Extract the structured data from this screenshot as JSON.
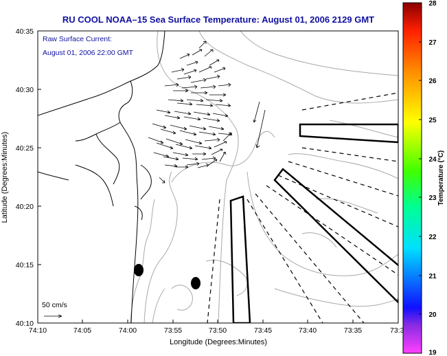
{
  "title": "RU COOL  NOAA–15  Sea Surface Temperature:  August 01, 2006 2129 GMT",
  "current_label_line1": "Raw Surface Current:",
  "current_label_line2": "August 01, 2006 22:00 GMT",
  "scale_label": "50 cm/s",
  "xlabel": "Longitude (Degrees:Minutes)",
  "ylabel": "Latitude (Degrees:Minutes)",
  "colorbar_label": "Temperature (°C)",
  "x_ticks": [
    "74:10",
    "74:05",
    "74:00",
    "73:55",
    "73:50",
    "73:45",
    "73:40",
    "73:35",
    "73:3"
  ],
  "y_ticks": [
    "40:35",
    "40:30",
    "40:25",
    "40:20",
    "40:15",
    "40:10"
  ],
  "colorbar_ticks": [
    "28",
    "27",
    "26",
    "25",
    "24",
    "23",
    "22",
    "21",
    "20",
    "19"
  ],
  "colors": {
    "title": "#1010a0",
    "land_line": "#000000",
    "bathymetry": "#a8a8a8"
  }
}
